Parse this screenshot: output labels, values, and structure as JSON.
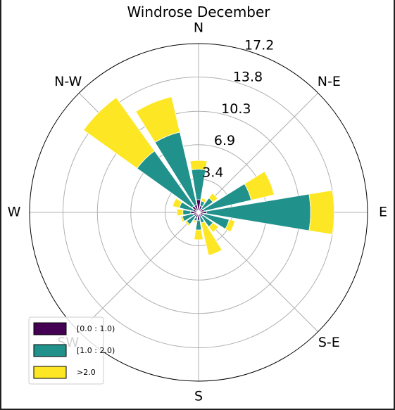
{
  "chart_data": {
    "type": "windrose",
    "title": "Windrose December",
    "directions": [
      "N",
      "N-E",
      "E",
      "S-E",
      "S",
      "SW",
      "W",
      "N-W"
    ],
    "radial_ticks": [
      "3.4",
      "6.9",
      "10.3",
      "13.8",
      "17.2"
    ],
    "radial_tick_values": [
      3.4,
      6.9,
      10.3,
      13.8,
      17.2
    ],
    "rmax": 17.2,
    "sector_count": 16,
    "sector_centers_deg": [
      0,
      22.5,
      45,
      67.5,
      90,
      112.5,
      135,
      157.5,
      180,
      202.5,
      225,
      247.5,
      270,
      292.5,
      315,
      337.5
    ],
    "series": [
      {
        "name": "[0.0 : 1.0)",
        "color": "#440154",
        "values": [
          1.3,
          0.7,
          0.5,
          0.6,
          0.8,
          0.6,
          0.5,
          0.5,
          0.8,
          0.6,
          0.5,
          0.6,
          0.8,
          0.6,
          0.8,
          0.8
        ]
      },
      {
        "name": "[1.0 : 2.0)",
        "color": "#21918c",
        "values": [
          3.1,
          0.5,
          1.3,
          4.9,
          10.6,
          2.6,
          1.3,
          0.6,
          1.0,
          0.3,
          1.0,
          1.1,
          0.8,
          1.4,
          6.9,
          7.6
        ]
      },
      {
        "name": ">2.0",
        "color": "#fde725",
        "values": [
          0.9,
          0.3,
          0.6,
          2.4,
          2.4,
          0.6,
          0.7,
          3.4,
          1.0,
          0.2,
          0.2,
          0.2,
          0.6,
          0.7,
          6.7,
          3.7
        ]
      }
    ],
    "legend_position": "lower-left",
    "grid": true
  }
}
